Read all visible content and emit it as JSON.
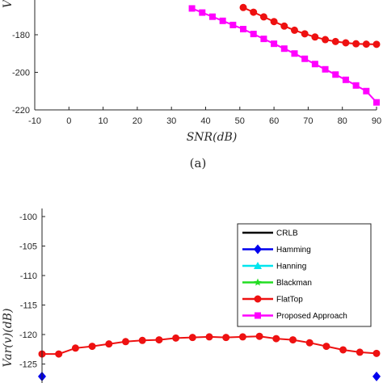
{
  "colors": {
    "crlb": "#000000",
    "hamming": "#0000ee",
    "hanning": "#00e5ee",
    "blackman": "#22dd22",
    "flattop": "#ee1111",
    "proposed": "#ff00ff"
  },
  "chart_data": [
    {
      "id": "a",
      "type": "line",
      "panel_label": "(a)",
      "xlabel": "SNR(dB)",
      "ylabel_visible": "V",
      "xlim": [
        -10,
        90
      ],
      "xticks": [
        -10,
        0,
        10,
        20,
        30,
        40,
        50,
        60,
        70,
        80,
        90
      ],
      "xtick_labels": [
        "-10",
        "0",
        "10",
        "20",
        "30",
        "40",
        "50",
        "60",
        "70",
        "80",
        "90"
      ],
      "ylim": [
        -220,
        -166
      ],
      "yticks": [
        -180,
        -200,
        -220
      ],
      "ytick_labels": [
        "-180",
        "-200",
        "-220"
      ],
      "series": [
        {
          "name": "FlatTop",
          "color_key": "flattop",
          "marker": "circle",
          "x": [
            51,
            54,
            57,
            60,
            63,
            66,
            69,
            72,
            75,
            78,
            81,
            84,
            87,
            90
          ],
          "y": [
            -165.5,
            -168,
            -170.5,
            -173,
            -175.4,
            -177.6,
            -179.5,
            -181.2,
            -182.6,
            -183.6,
            -184.3,
            -184.8,
            -185,
            -185.1
          ]
        },
        {
          "name": "Proposed Approach",
          "color_key": "proposed",
          "marker": "square",
          "x": [
            36,
            39,
            42,
            45,
            48,
            51,
            54,
            57,
            60,
            63,
            66,
            69,
            72,
            75,
            78,
            81,
            84,
            87,
            90
          ],
          "y": [
            -166,
            -168.2,
            -170.4,
            -172.6,
            -174.8,
            -177,
            -179.6,
            -182.2,
            -184.8,
            -187.4,
            -190,
            -192.8,
            -195.6,
            -198.4,
            -201.2,
            -204,
            -207,
            -210,
            -216
          ]
        }
      ]
    },
    {
      "id": "b",
      "type": "line",
      "ylabel": "Var(v)(dB)",
      "ylim": [
        -128,
        -100
      ],
      "yticks": [
        -100,
        -105,
        -110,
        -115,
        -120,
        -125
      ],
      "ytick_labels": [
        "-100",
        "-105",
        "-110",
        "-115",
        "-120",
        "-125"
      ],
      "xlim": [
        0,
        20
      ],
      "legend": {
        "placement": "top-right",
        "entries": [
          {
            "label": "CRLB",
            "color_key": "crlb",
            "marker": "none"
          },
          {
            "label": "Hamming",
            "color_key": "hamming",
            "marker": "diamond"
          },
          {
            "label": "Hanning",
            "color_key": "hanning",
            "marker": "triangle"
          },
          {
            "label": "Blackman",
            "color_key": "blackman",
            "marker": "star"
          },
          {
            "label": "FlatTop",
            "color_key": "flattop",
            "marker": "circle"
          },
          {
            "label": "Proposed Approach",
            "color_key": "proposed",
            "marker": "square"
          }
        ]
      },
      "series": [
        {
          "name": "FlatTop",
          "color_key": "flattop",
          "marker": "circle",
          "x": [
            0,
            1,
            2,
            3,
            4,
            5,
            6,
            7,
            8,
            9,
            10,
            11,
            12,
            13,
            14,
            15,
            16,
            17,
            18,
            19,
            20
          ],
          "y": [
            -123.3,
            -123.3,
            -122.3,
            -122,
            -121.6,
            -121.2,
            -121,
            -120.9,
            -120.6,
            -120.5,
            -120.4,
            -120.5,
            -120.4,
            -120.3,
            -120.7,
            -120.9,
            -121.4,
            -122,
            -122.6,
            -123,
            -123.2
          ]
        },
        {
          "name": "Hamming",
          "color_key": "hamming",
          "marker": "diamond",
          "x": [
            0,
            20
          ],
          "y": [
            -127.1,
            -127.1
          ]
        }
      ]
    }
  ]
}
